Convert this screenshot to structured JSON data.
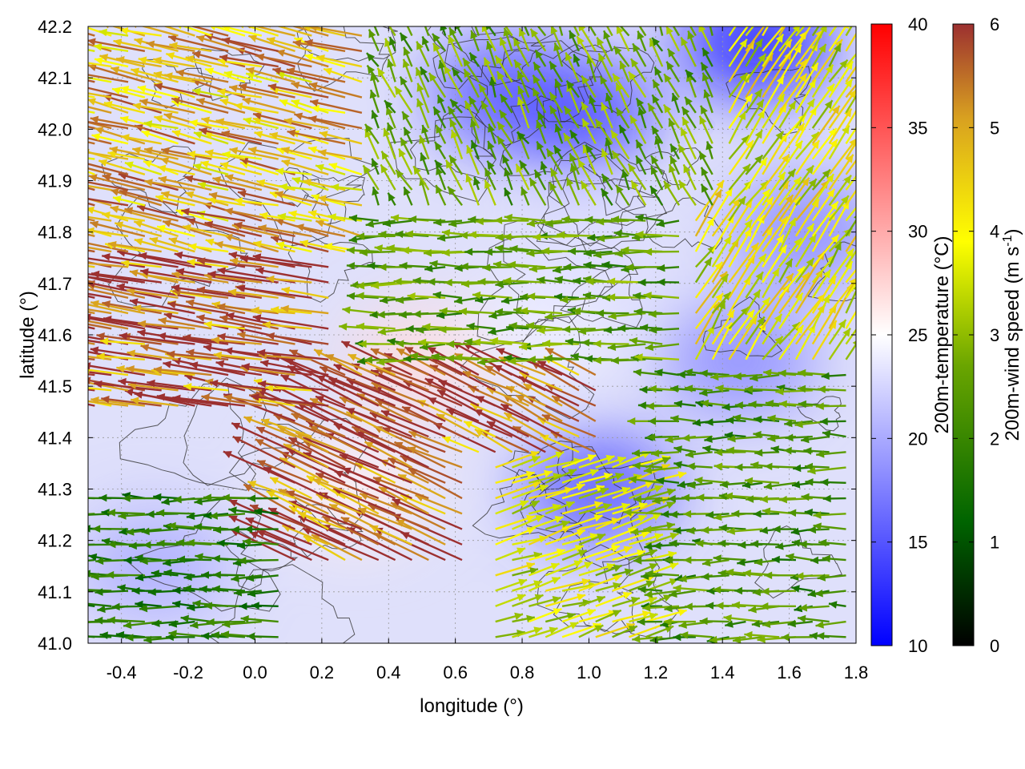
{
  "chart_data": {
    "type": "vector-field-heatmap",
    "xlabel": "longitude (°)",
    "ylabel": "latitude (°)",
    "xlim": [
      -0.5,
      1.8
    ],
    "ylim": [
      41.0,
      42.2
    ],
    "xticks": [
      {
        "v": -0.4,
        "label": "-0.4"
      },
      {
        "v": -0.2,
        "label": "-0.2"
      },
      {
        "v": 0.0,
        "label": "0.0"
      },
      {
        "v": 0.2,
        "label": "0.2"
      },
      {
        "v": 0.4,
        "label": "0.4"
      },
      {
        "v": 0.6,
        "label": "0.6"
      },
      {
        "v": 0.8,
        "label": "0.8"
      },
      {
        "v": 1.0,
        "label": "1.0"
      },
      {
        "v": 1.2,
        "label": "1.2"
      },
      {
        "v": 1.4,
        "label": "1.4"
      },
      {
        "v": 1.6,
        "label": "1.6"
      },
      {
        "v": 1.8,
        "label": "1.8"
      }
    ],
    "yticks": [
      {
        "v": 41.0,
        "label": "41.0"
      },
      {
        "v": 41.1,
        "label": "41.1"
      },
      {
        "v": 41.2,
        "label": "41.2"
      },
      {
        "v": 41.3,
        "label": "41.3"
      },
      {
        "v": 41.4,
        "label": "41.4"
      },
      {
        "v": 41.5,
        "label": "41.5"
      },
      {
        "v": 41.6,
        "label": "41.6"
      },
      {
        "v": 41.7,
        "label": "41.7"
      },
      {
        "v": 41.8,
        "label": "41.8"
      },
      {
        "v": 41.9,
        "label": "41.9"
      },
      {
        "v": 42.0,
        "label": "42.0"
      },
      {
        "v": 42.1,
        "label": "42.1"
      },
      {
        "v": 42.2,
        "label": "42.2"
      }
    ],
    "grid": true,
    "temperature_colorbar": {
      "label": "200m-temperature (°C)",
      "range": [
        10,
        40
      ],
      "ticks": [
        {
          "v": 10,
          "label": "10"
        },
        {
          "v": 15,
          "label": "15"
        },
        {
          "v": 20,
          "label": "20"
        },
        {
          "v": 25,
          "label": "25"
        },
        {
          "v": 30,
          "label": "30"
        },
        {
          "v": 35,
          "label": "35"
        },
        {
          "v": 40,
          "label": "40"
        }
      ],
      "colors": {
        "low": "#0000ff",
        "mid": "#ffffff",
        "high": "#ff0000"
      }
    },
    "wind_colorbar": {
      "label_main": "200m-wind speed (m s",
      "label_sup": "-1",
      "label_close": ")",
      "range": [
        0,
        6
      ],
      "ticks": [
        {
          "v": 0,
          "label": "0"
        },
        {
          "v": 1,
          "label": "1"
        },
        {
          "v": 2,
          "label": "2"
        },
        {
          "v": 3,
          "label": "3"
        },
        {
          "v": 4,
          "label": "4"
        },
        {
          "v": 5,
          "label": "5"
        },
        {
          "v": 6,
          "label": "6"
        }
      ],
      "colors": [
        "#000000",
        "#006400",
        "#6aa500",
        "#ffff00",
        "#d8a020",
        "#9c3030"
      ]
    },
    "temperature_patches": [
      {
        "lon": 0.5,
        "lat": 41.55,
        "temp": 27
      },
      {
        "lon": 0.3,
        "lat": 41.3,
        "temp": 26
      },
      {
        "lon": 1.5,
        "lat": 42.17,
        "temp": 12
      },
      {
        "lon": 0.97,
        "lat": 42.03,
        "temp": 14
      },
      {
        "lon": 0.75,
        "lat": 42.07,
        "temp": 15
      },
      {
        "lon": 1.03,
        "lat": 41.3,
        "temp": 15
      },
      {
        "lon": 1.45,
        "lat": 41.55,
        "temp": 18
      },
      {
        "lon": 1.65,
        "lat": 41.8,
        "temp": 18
      },
      {
        "lon": 1.0,
        "lat": 41.75,
        "temp": 23
      },
      {
        "lon": -0.3,
        "lat": 41.15,
        "temp": 20
      },
      {
        "lon": 0.85,
        "lat": 41.6,
        "temp": 24
      }
    ],
    "wind_regions": [
      {
        "lon_range": [
          -0.5,
          0.35
        ],
        "lat_range": [
          41.75,
          42.2
        ],
        "u": -4.2,
        "v": 1.0,
        "speed": 4.5
      },
      {
        "lon_range": [
          -0.5,
          0.25
        ],
        "lat_range": [
          41.45,
          41.75
        ],
        "u": -5.5,
        "v": 0.9,
        "speed": 5.6
      },
      {
        "lon_range": [
          0.1,
          0.65
        ],
        "lat_range": [
          41.15,
          41.55
        ],
        "u": -5.5,
        "v": 2.5,
        "speed": 5.9
      },
      {
        "lon_range": [
          0.55,
          1.05
        ],
        "lat_range": [
          41.35,
          41.55
        ],
        "u": -4.5,
        "v": 2.2,
        "speed": 5.5
      },
      {
        "lon_range": [
          0.35,
          1.3
        ],
        "lat_range": [
          41.55,
          41.85
        ],
        "u": -3.0,
        "v": 0.0,
        "speed": 2.2
      },
      {
        "lon_range": [
          0.35,
          1.4
        ],
        "lat_range": [
          41.85,
          42.2
        ],
        "u": -1.0,
        "v": 2.0,
        "speed": 2.3
      },
      {
        "lon_range": [
          1.1,
          1.8
        ],
        "lat_range": [
          41.55,
          42.2
        ],
        "u": 2.0,
        "v": 3.0,
        "speed": 3.5
      },
      {
        "lon_range": [
          1.2,
          1.8
        ],
        "lat_range": [
          41.0,
          41.55
        ],
        "u": -2.5,
        "v": 0.0,
        "speed": 2.0
      },
      {
        "lon_range": [
          0.7,
          1.4
        ],
        "lat_range": [
          41.0,
          41.35
        ],
        "u": 3.0,
        "v": 1.0,
        "speed": 3.2
      },
      {
        "lon_range": [
          -0.5,
          0.1
        ],
        "lat_range": [
          41.0,
          41.3
        ],
        "u": -3.0,
        "v": 0.0,
        "speed": 1.6
      }
    ]
  }
}
